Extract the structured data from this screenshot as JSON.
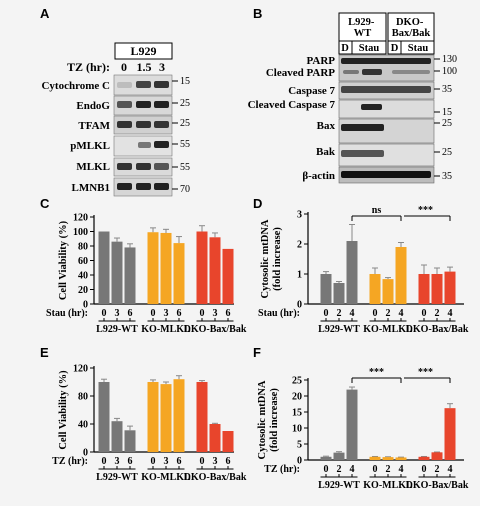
{
  "panels": {
    "A": {
      "letter": "A",
      "header": "L929",
      "row_label": "TZ (hr):",
      "lanes": [
        "0",
        "1.5",
        "3"
      ],
      "blots": [
        {
          "name": "Cytochrome C",
          "mw": [
            "15"
          ]
        },
        {
          "name": "EndoG",
          "mw": [
            "25"
          ]
        },
        {
          "name": "TFAM",
          "mw": [
            "25"
          ]
        },
        {
          "name": "pMLKL",
          "mw": [
            "55"
          ]
        },
        {
          "name": "MLKL",
          "mw": [
            "55"
          ]
        },
        {
          "name": "LMNB1",
          "mw": [
            "70"
          ]
        }
      ]
    },
    "B": {
      "letter": "B",
      "groups": [
        "L929-\nWT",
        "DKO-\nBax/Bak"
      ],
      "lanes": [
        "D",
        "Stau",
        "D",
        "Stau"
      ],
      "blots": [
        {
          "names": [
            "PARP",
            "Cleaved PARP"
          ],
          "mw": [
            "130",
            "100"
          ]
        },
        {
          "names": [
            "Caspase 7"
          ],
          "mw": [
            "35"
          ]
        },
        {
          "names": [
            "Cleaved Caspase 7"
          ],
          "mw": [
            "15"
          ]
        },
        {
          "names": [
            "Bax"
          ],
          "mw": [
            "25"
          ]
        },
        {
          "names": [
            "Bak"
          ],
          "mw": [
            "25"
          ]
        },
        {
          "names": [
            "β-actin"
          ],
          "mw": [
            "35"
          ]
        }
      ]
    }
  },
  "chart_data": [
    {
      "panel": "C",
      "type": "bar",
      "ylabel": "Cell Viability (%)",
      "ylim": [
        0,
        120
      ],
      "yticks": [
        0,
        20,
        40,
        60,
        80,
        100,
        120
      ],
      "xlabel_prefix": "Stau (hr):",
      "groups": [
        "L929-WT",
        "KO-MLKL",
        "DKO-Bax/Bak"
      ],
      "categories": [
        "0",
        "3",
        "6"
      ],
      "colors": [
        "#777777",
        "#f5a623",
        "#e8452c"
      ],
      "series": [
        {
          "values": [
            100,
            86,
            78
          ],
          "errors": [
            0,
            5,
            5
          ]
        },
        {
          "values": [
            99,
            98,
            84
          ],
          "errors": [
            6,
            5,
            9
          ]
        },
        {
          "values": [
            100,
            92,
            76
          ],
          "errors": [
            8,
            6,
            0
          ]
        }
      ]
    },
    {
      "panel": "D",
      "type": "bar",
      "ylabel": "Cytosolic mtDNA (fold increase)",
      "ylim": [
        0,
        3
      ],
      "yticks": [
        0,
        1,
        2,
        3
      ],
      "xlabel_prefix": "Stau (hr):",
      "groups": [
        "L929-WT",
        "KO-MLKL",
        "DKO-Bax/Bak"
      ],
      "categories": [
        "0",
        "2",
        "4"
      ],
      "colors": [
        "#777777",
        "#f5a623",
        "#e8452c"
      ],
      "series": [
        {
          "values": [
            1.0,
            0.7,
            2.1
          ],
          "errors": [
            0.08,
            0.05,
            0.55
          ]
        },
        {
          "values": [
            1.0,
            0.83,
            1.9
          ],
          "errors": [
            0.2,
            0.05,
            0.15
          ]
        },
        {
          "values": [
            1.0,
            1.0,
            1.08
          ],
          "errors": [
            0.3,
            0.2,
            0.15
          ]
        }
      ],
      "annotations": [
        "ns",
        "***"
      ]
    },
    {
      "panel": "E",
      "type": "bar",
      "ylabel": "Cell Viability (%)",
      "ylim": [
        0,
        120
      ],
      "yticks": [
        0,
        40,
        80,
        120
      ],
      "xlabel_prefix": "TZ (hr):",
      "groups": [
        "L929-WT",
        "KO-MLKL",
        "DKO-Bax/Bak"
      ],
      "categories": [
        "0",
        "3",
        "6"
      ],
      "colors": [
        "#777777",
        "#f5a623",
        "#e8452c"
      ],
      "series": [
        {
          "values": [
            100,
            44,
            31
          ],
          "errors": [
            4,
            4,
            6
          ]
        },
        {
          "values": [
            100,
            97,
            104
          ],
          "errors": [
            3,
            3,
            5
          ]
        },
        {
          "values": [
            100,
            40,
            30
          ],
          "errors": [
            2,
            1,
            0
          ]
        }
      ]
    },
    {
      "panel": "F",
      "type": "bar",
      "ylabel": "Cytosolic mtDNA (fold increase)",
      "ylim": [
        0,
        25
      ],
      "yticks": [
        0,
        5,
        10,
        15,
        20,
        25
      ],
      "xlabel_prefix": "TZ (hr):",
      "groups": [
        "L929-WT",
        "KO-MLKL",
        "DKO-Bax/Bak"
      ],
      "categories": [
        "0",
        "2",
        "4"
      ],
      "colors": [
        "#777777",
        "#f5a623",
        "#e8452c"
      ],
      "series": [
        {
          "values": [
            1.0,
            2.3,
            22.0
          ],
          "errors": [
            0.2,
            0.3,
            0.8
          ]
        },
        {
          "values": [
            1.0,
            0.9,
            0.8
          ],
          "errors": [
            0.1,
            0.1,
            0.1
          ]
        },
        {
          "values": [
            1.0,
            2.4,
            16.2
          ],
          "errors": [
            0.1,
            0.1,
            1.4
          ]
        }
      ],
      "annotations": [
        "***",
        "***"
      ]
    }
  ]
}
